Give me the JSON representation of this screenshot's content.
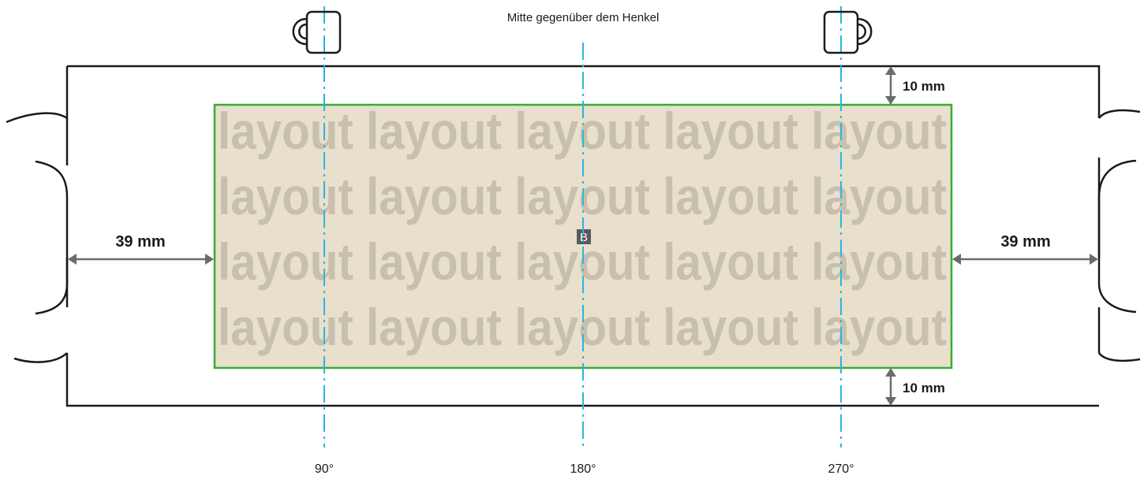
{
  "header": {
    "center_caption": "Mitte gegenüber dem Henkel"
  },
  "dimensions": {
    "top_margin": "10 mm",
    "bottom_margin": "10 mm",
    "left_margin": "39 mm",
    "right_margin": "39 mm"
  },
  "angles": {
    "left": "90°",
    "center": "180°",
    "right": "270°"
  },
  "print_area": {
    "watermark_word": "layout",
    "center_marker": "B",
    "fill_color": "#e8dfcc",
    "border_color": "#3aaa35",
    "watermark_color": "#c8c0ae"
  },
  "icons": {
    "left_mug": "mug-handle-left-icon",
    "right_mug": "mug-handle-right-icon"
  },
  "colors": {
    "guide_line": "#29b6e0",
    "arrow": "#6b6b6b",
    "outline": "#1a1a1a"
  }
}
